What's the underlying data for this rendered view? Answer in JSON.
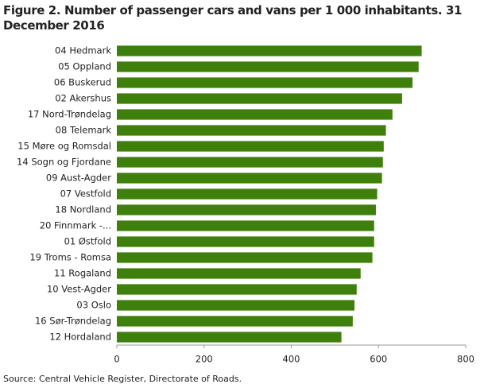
{
  "chart_data": {
    "type": "bar",
    "orientation": "horizontal",
    "title": "Figure 2. Number of passenger cars and vans per 1 000 inhabitants. 31 December 2016",
    "source": "Source: Central Vehicle Register, Directorate of Roads.",
    "categories": [
      "04 Hedmark",
      "05 Oppland",
      "06 Buskerud",
      "02 Akershus",
      "17 Nord-Trøndelag",
      "08 Telemark",
      "15 Møre og Romsdal",
      "14 Sogn og Fjordane",
      "09 Aust-Agder",
      "07 Vestfold",
      "18 Nordland",
      "20 Finnmark -...",
      "01 Østfold",
      "19 Troms - Romsa",
      "11 Rogaland",
      "10 Vest-Agder",
      "03 Oslo",
      "16 Sør-Trøndelag",
      "12 Hordaland"
    ],
    "values": [
      699,
      692,
      678,
      654,
      632,
      617,
      612,
      610,
      608,
      597,
      594,
      590,
      590,
      586,
      559,
      550,
      545,
      541,
      515
    ],
    "color": "#3f7f0b",
    "xlim": [
      0,
      800
    ],
    "xticks": [
      0,
      200,
      400,
      600,
      800
    ],
    "grid": false
  }
}
